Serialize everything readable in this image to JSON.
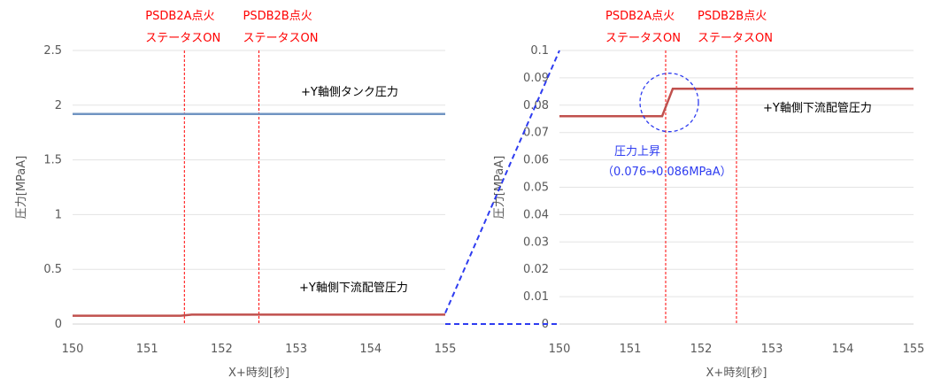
{
  "chart_data": [
    {
      "type": "line",
      "xlabel": "X+時刻[秒]",
      "ylabel": "圧力[MPaA]",
      "xlim": [
        150,
        155
      ],
      "ylim": [
        0,
        2.5
      ],
      "x_ticks": [
        "150",
        "151",
        "152",
        "153",
        "154",
        "155"
      ],
      "y_ticks": [
        "0",
        "0.5",
        "1",
        "1.5",
        "2",
        "2.5"
      ],
      "grid": "horizontal",
      "series": [
        {
          "name": "+Y軸側タンク圧力",
          "color": "#7094c2",
          "x": [
            150,
            155
          ],
          "y": [
            1.92,
            1.92
          ]
        },
        {
          "name": "+Y軸側下流配管圧力",
          "color": "#c0504d",
          "x": [
            150,
            151.45,
            151.6,
            155
          ],
          "y": [
            0.076,
            0.076,
            0.086,
            0.086
          ]
        }
      ],
      "events": [
        {
          "x": 151.5,
          "label_line1": "PSDB2A点火",
          "label_line2": "ステータスON",
          "color": "#ff0000"
        },
        {
          "x": 152.5,
          "label_line1": "PSDB2B点火",
          "label_line2": "ステータスON",
          "color": "#ff0000"
        }
      ]
    },
    {
      "type": "line",
      "xlabel": "X+時刻[秒]",
      "ylabel": "圧力[MPaA]",
      "xlim": [
        150,
        155
      ],
      "ylim": [
        0,
        0.1
      ],
      "x_ticks": [
        "150",
        "151",
        "152",
        "153",
        "154",
        "155"
      ],
      "y_ticks": [
        "0",
        "0.01",
        "0.02",
        "0.03",
        "0.04",
        "0.05",
        "0.06",
        "0.07",
        "0.08",
        "0.09",
        "0.1"
      ],
      "grid": "horizontal",
      "series": [
        {
          "name": "+Y軸側下流配管圧力",
          "color": "#c0504d",
          "x": [
            150,
            151.45,
            151.6,
            155
          ],
          "y": [
            0.076,
            0.076,
            0.086,
            0.086
          ]
        }
      ],
      "events": [
        {
          "x": 151.5,
          "label_line1": "PSDB2A点火",
          "label_line2": "ステータスON",
          "color": "#ff0000"
        },
        {
          "x": 152.5,
          "label_line1": "PSDB2B点火",
          "label_line2": "ステータスON",
          "color": "#ff0000"
        }
      ],
      "annotation": {
        "line1": "圧力上昇",
        "line2": "（0.076→0.086MPaA）",
        "color": "#2e3cf0"
      }
    }
  ]
}
